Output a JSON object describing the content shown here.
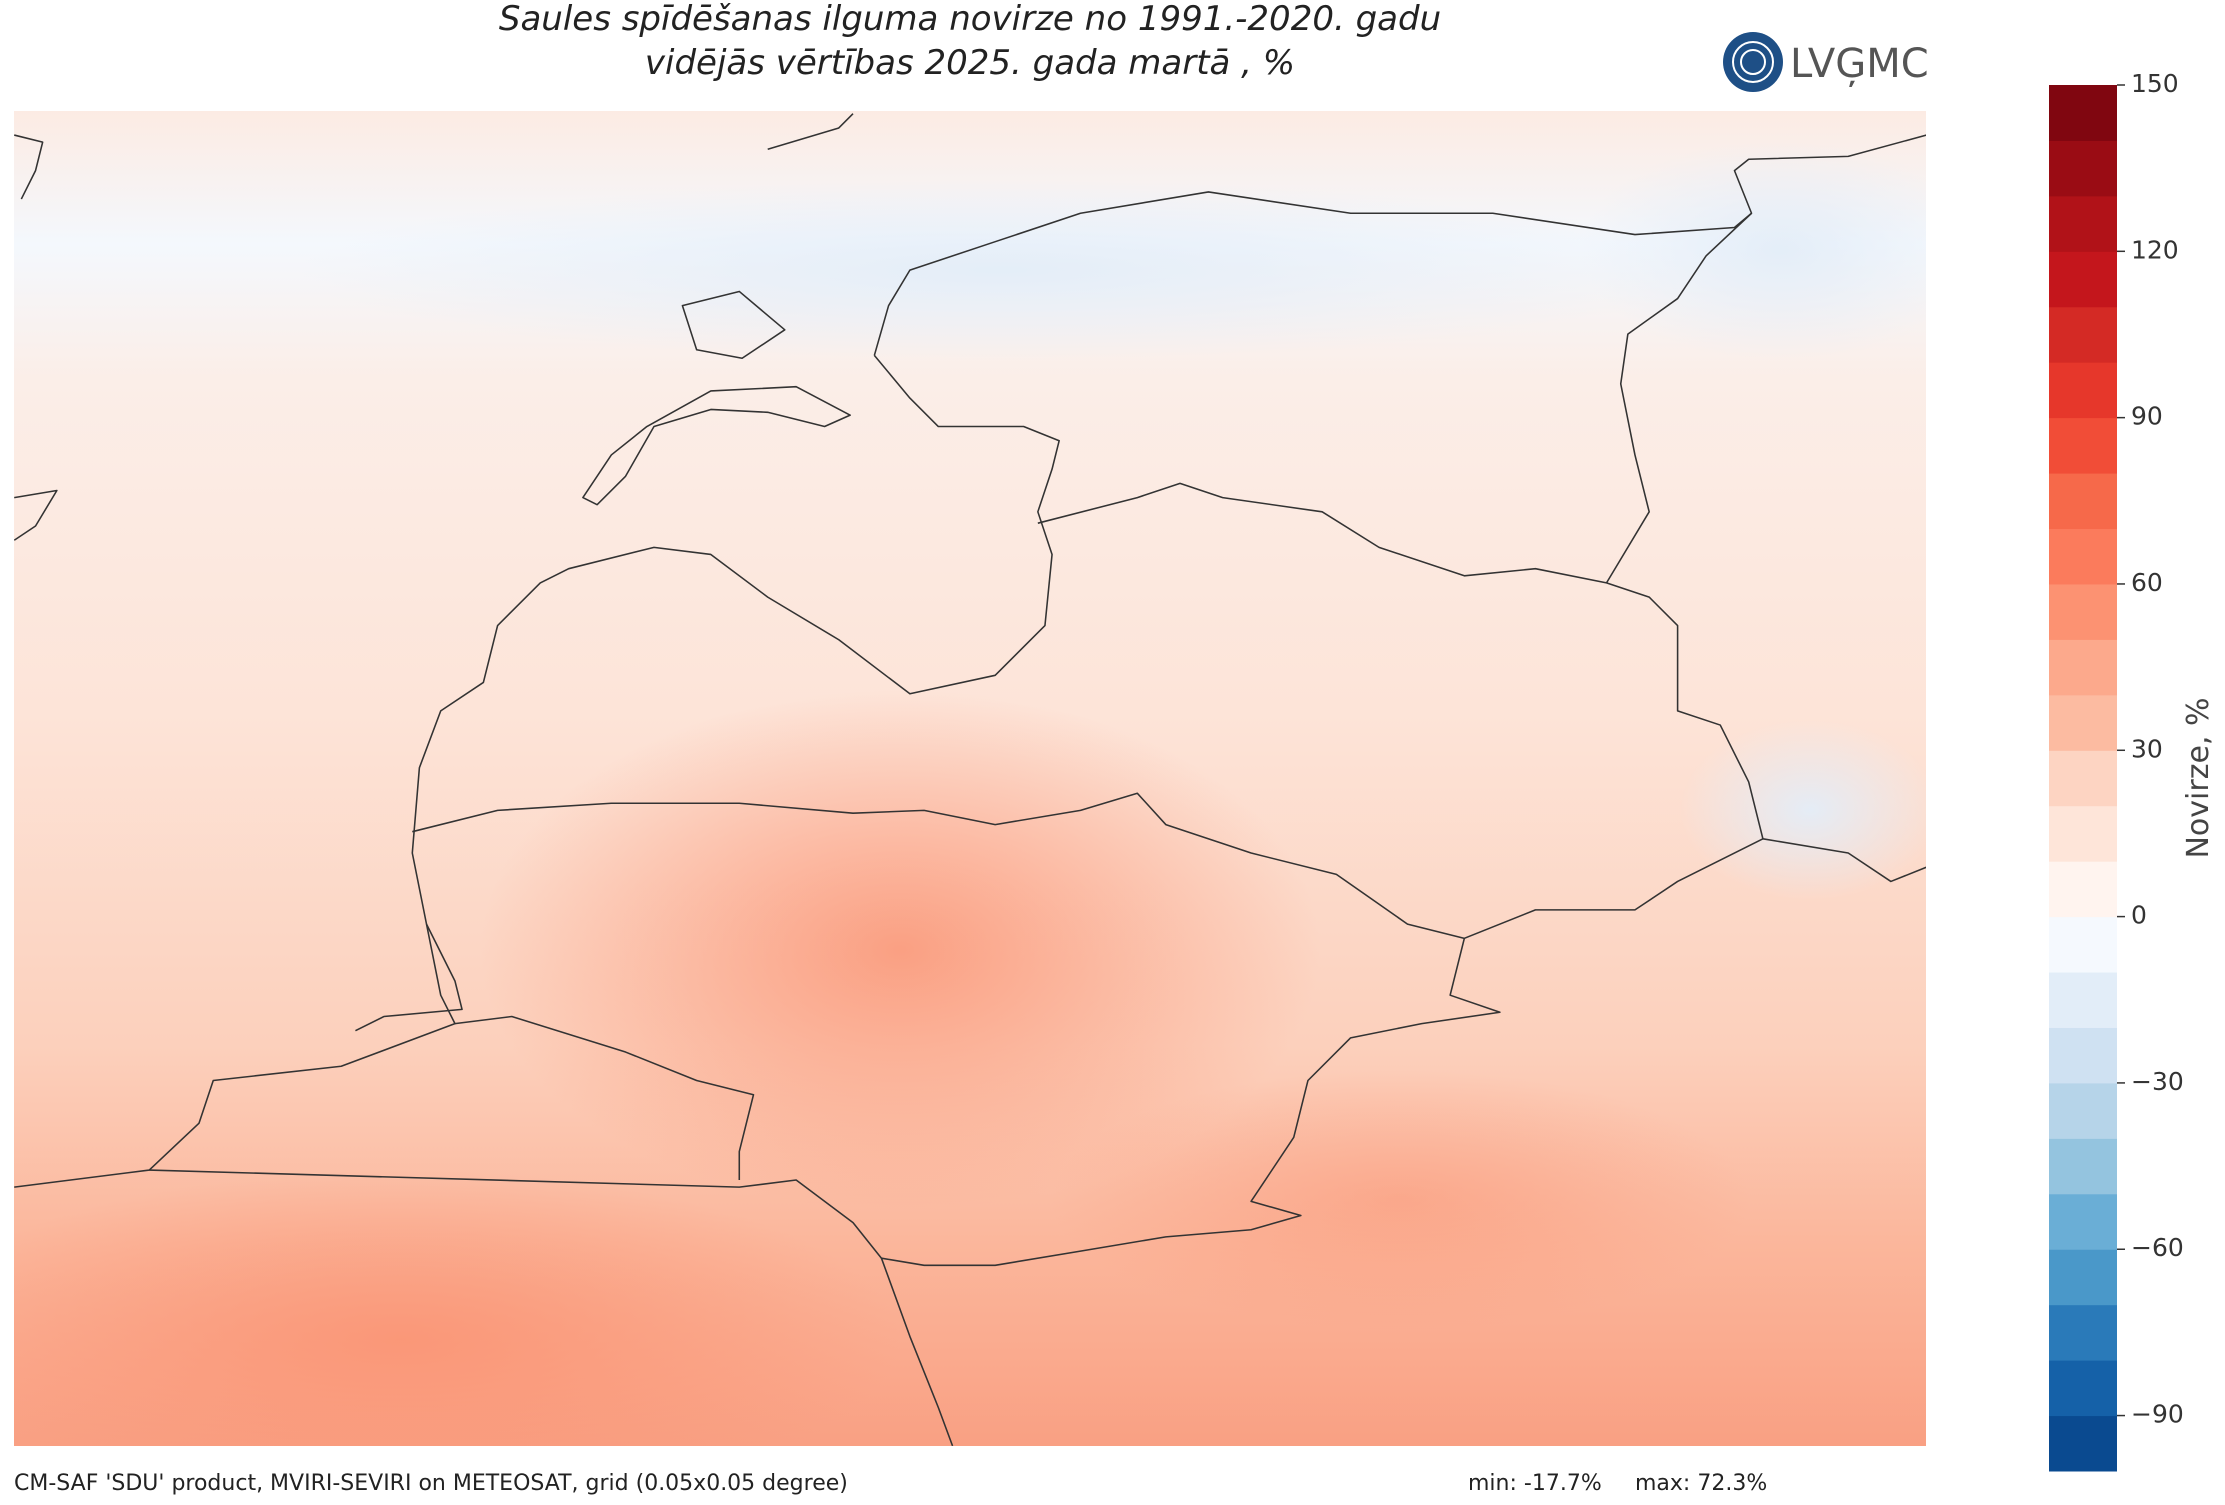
{
  "title": [
    "Saules spīdēšanas ilguma novirze no 1991.-2020. gadu",
    "vidējās vērtības 2025. gada martā , %"
  ],
  "logo": "LVĢMC",
  "colorbar": {
    "label": "Novirze, %",
    "lim": [
      -100,
      150
    ],
    "ticks": [
      {
        "value": -90,
        "label": "−90"
      },
      {
        "value": -60,
        "label": "−60"
      },
      {
        "value": -30,
        "label": "−30"
      },
      0,
      30,
      60,
      90,
      120,
      150
    ],
    "colors": [
      "#0a4a90",
      "#1561a8",
      "#2a7ab9",
      "#4a98c9",
      "#6aaed6",
      "#94c4df",
      "#b6d4e9",
      "#cfe1f2",
      "#e2edf8",
      "#f5f9fe",
      "#fff4ef",
      "#fee5d9",
      "#fdd4c2",
      "#fcbba1",
      "#fca98c",
      "#fc9272",
      "#fb7b5c",
      "#f6694a",
      "#f14d37",
      "#e6372b",
      "#d42a25",
      "#c4161c",
      "#b11218",
      "#9a0c14",
      "#800610"
    ]
  },
  "footer": {
    "source": "CM-SAF 'SDU' product, MVIRI-SEVIRI on METEOSAT, grid (0.05x0.05 degree)",
    "min": "min: -17.7%",
    "max": "max: 72.3%"
  }
}
